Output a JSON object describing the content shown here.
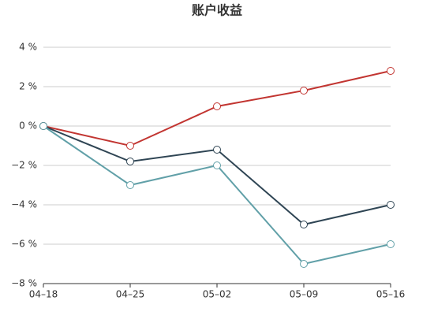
{
  "chart_data": {
    "type": "line",
    "title": "账户收益",
    "categories": [
      "04–18",
      "04–25",
      "05–02",
      "05–09",
      "05–16"
    ],
    "series": [
      {
        "color": "#c23531",
        "values": [
          0,
          -1,
          1,
          1.8,
          2.8
        ]
      },
      {
        "color": "#2f4554",
        "values": [
          0,
          -1.8,
          -1.2,
          -5,
          -4
        ]
      },
      {
        "color": "#61a0a8",
        "values": [
          0,
          -3,
          -2,
          -7,
          -6
        ]
      }
    ],
    "ylim": [
      -8,
      4
    ],
    "yticks": [
      {
        "value": -8,
        "label": "−8 %"
      },
      {
        "value": -6,
        "label": "−6 %"
      },
      {
        "value": -4,
        "label": "−4 %"
      },
      {
        "value": -2,
        "label": "−2 %"
      },
      {
        "value": 0,
        "label": "0 %"
      },
      {
        "value": 2,
        "label": "2 %"
      },
      {
        "value": 4,
        "label": "4 %"
      }
    ],
    "grid": true
  }
}
